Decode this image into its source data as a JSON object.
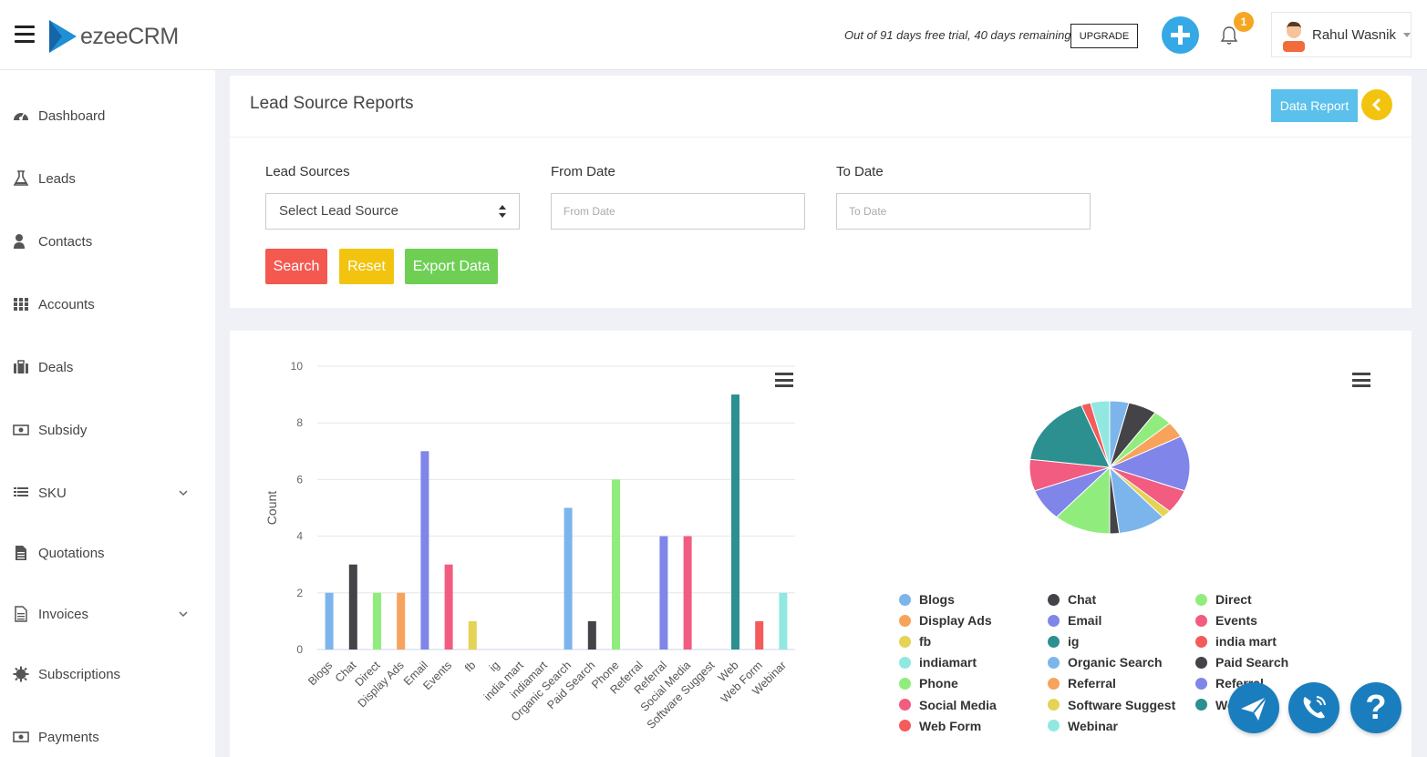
{
  "header": {
    "brand": "ezeeCRM",
    "trial_text": "Out of 91 days free trial, 40 days remaining",
    "upgrade_label": "UPGRADE",
    "notification_count": "1",
    "user_name": "Rahul Wasnik"
  },
  "sidebar": {
    "items": [
      {
        "label": "Dashboard",
        "icon": "dashboard-icon"
      },
      {
        "label": "Leads",
        "icon": "flask-icon"
      },
      {
        "label": "Contacts",
        "icon": "user-icon"
      },
      {
        "label": "Accounts",
        "icon": "grid-icon"
      },
      {
        "label": "Deals",
        "icon": "briefcase-icon"
      },
      {
        "label": "Subsidy",
        "icon": "money-icon"
      },
      {
        "label": "SKU",
        "icon": "list-icon"
      },
      {
        "label": "Quotations",
        "icon": "document-icon"
      },
      {
        "label": "Invoices",
        "icon": "invoice-icon"
      },
      {
        "label": "Subscriptions",
        "icon": "gear-icon"
      },
      {
        "label": "Payments",
        "icon": "money-icon"
      }
    ]
  },
  "report": {
    "title": "Lead Source Reports",
    "data_report_label": "Data Report",
    "lead_sources_label": "Lead Sources",
    "lead_source_selected": "Select Lead Source",
    "from_date_label": "From Date",
    "from_date_placeholder": "From Date",
    "to_date_label": "To Date",
    "to_date_placeholder": "To Date",
    "search_label": "Search",
    "reset_label": "Reset",
    "export_label": "Export Data"
  },
  "colors": {
    "blue": "#7cb5ec",
    "black": "#434348",
    "green": "#90ed7d",
    "orange": "#f7a35c",
    "purple": "#8085e9",
    "pink": "#f15c80",
    "yellow": "#e4d354",
    "teal": "#2b908f",
    "red": "#f45b5b",
    "cyan": "#91e8e1",
    "search_btn": "#f4594f",
    "reset_btn": "#f2c40f",
    "export_btn": "#6fcf55"
  },
  "chart_data": [
    {
      "type": "bar",
      "ylabel": "Count",
      "ylim": [
        0,
        10
      ],
      "yticks": [
        0,
        2,
        4,
        6,
        8,
        10
      ],
      "categories": [
        "Blogs",
        "Chat",
        "Direct",
        "Display Ads",
        "Email",
        "Events",
        "fb",
        "ig",
        "india mart",
        "indiamart",
        "Organic Search",
        "Paid Search",
        "Phone",
        "Referral",
        "Referral",
        "Social Media",
        "Software Suggest",
        "Web",
        "Web Form",
        "Webinar"
      ],
      "values": [
        2,
        3,
        2,
        2,
        7,
        3,
        1,
        0,
        0,
        0,
        5,
        1,
        6,
        0,
        4,
        4,
        0,
        9,
        1,
        2
      ],
      "bar_colors": [
        "#7cb5ec",
        "#434348",
        "#90ed7d",
        "#f7a35c",
        "#8085e9",
        "#f15c80",
        "#e4d354",
        "#2b908f",
        "#f45b5b",
        "#91e8e1",
        "#7cb5ec",
        "#434348",
        "#90ed7d",
        "#f7a35c",
        "#8085e9",
        "#f15c80",
        "#e4d354",
        "#2b908f",
        "#f45b5b",
        "#91e8e1"
      ],
      "grid": true
    },
    {
      "type": "pie",
      "categories": [
        "Blogs",
        "Chat",
        "Direct",
        "Display Ads",
        "Email",
        "Events",
        "fb",
        "ig",
        "india mart",
        "indiamart",
        "Organic Search",
        "Paid Search",
        "Phone",
        "Referral",
        "Referral",
        "Social Media",
        "Software Suggest",
        "Web",
        "Web Form",
        "Webinar"
      ],
      "values": [
        2,
        3,
        2,
        2,
        7,
        3,
        1,
        0,
        0,
        0,
        5,
        1,
        6,
        0,
        4,
        4,
        0,
        9,
        1,
        2
      ],
      "legend_position": "bottom",
      "legend": [
        {
          "label": "Blogs",
          "color": "#7cb5ec"
        },
        {
          "label": "Chat",
          "color": "#434348"
        },
        {
          "label": "Direct",
          "color": "#90ed7d"
        },
        {
          "label": "Display Ads",
          "color": "#f7a35c"
        },
        {
          "label": "Email",
          "color": "#8085e9"
        },
        {
          "label": "Events",
          "color": "#f15c80"
        },
        {
          "label": "fb",
          "color": "#e4d354"
        },
        {
          "label": "ig",
          "color": "#2b908f"
        },
        {
          "label": "india mart",
          "color": "#f45b5b"
        },
        {
          "label": "indiamart",
          "color": "#91e8e1"
        },
        {
          "label": "Organic Search",
          "color": "#7cb5ec"
        },
        {
          "label": "Paid Search",
          "color": "#434348"
        },
        {
          "label": "Phone",
          "color": "#90ed7d"
        },
        {
          "label": "Referral",
          "color": "#f7a35c"
        },
        {
          "label": "Referral",
          "color": "#8085e9"
        },
        {
          "label": "Social Media",
          "color": "#f15c80"
        },
        {
          "label": "Software Suggest",
          "color": "#e4d354"
        },
        {
          "label": "Web",
          "color": "#2b908f"
        },
        {
          "label": "Web Form",
          "color": "#f45b5b"
        },
        {
          "label": "Webinar",
          "color": "#91e8e1"
        }
      ]
    }
  ],
  "fab": {
    "help_label": "?"
  }
}
